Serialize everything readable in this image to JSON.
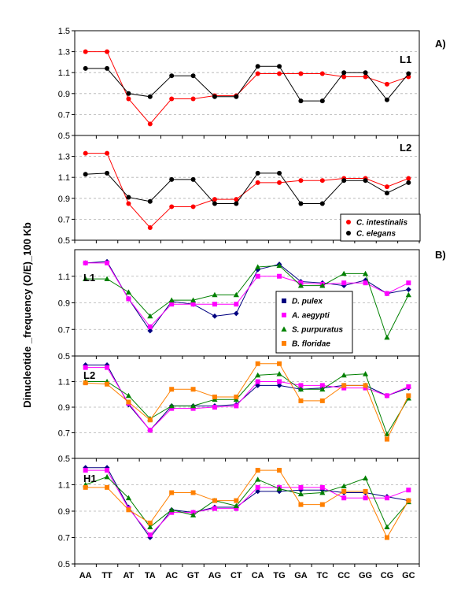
{
  "ylabel": "Dinucleotide _frequency (O/E)_100 Kb",
  "section_labels": [
    "A)",
    "B)"
  ],
  "colors": {
    "C. intestinalis": "#ff0000",
    "C. elegans": "#000000",
    "D. pulex": "#000080",
    "A. aegypti": "#ff00ff",
    "S. purpuratus": "#008000",
    "B. floridae": "#ff8000"
  },
  "chart_data": [
    {
      "type": "line",
      "panel_label": "L1",
      "categories": [
        "AA",
        "TT",
        "AT",
        "TA",
        "AC",
        "GT",
        "AG",
        "CT",
        "CA",
        "TG",
        "GA",
        "TC",
        "CC",
        "GG",
        "CG",
        "GC"
      ],
      "ylim": [
        0.5,
        1.5
      ],
      "yticks": [
        "0.5",
        "0.7",
        "0.9",
        "1.1",
        "1.3",
        "1.5"
      ],
      "show_xticks": false,
      "series": [
        {
          "name": "C. intestinalis",
          "marker": "circle",
          "values": [
            1.3,
            1.3,
            0.85,
            0.61,
            0.85,
            0.85,
            0.88,
            0.88,
            1.09,
            1.09,
            1.09,
            1.09,
            1.06,
            1.06,
            0.99,
            1.06
          ]
        },
        {
          "name": "C. elegans",
          "marker": "circle",
          "values": [
            1.14,
            1.14,
            0.9,
            0.87,
            1.07,
            1.07,
            0.87,
            0.87,
            1.16,
            1.16,
            0.83,
            0.83,
            1.1,
            1.1,
            0.84,
            1.09
          ]
        }
      ]
    },
    {
      "type": "line",
      "panel_label": "L2",
      "categories": [
        "AA",
        "TT",
        "AT",
        "TA",
        "AC",
        "GT",
        "AG",
        "CT",
        "CA",
        "TG",
        "GA",
        "TC",
        "CC",
        "GG",
        "CG",
        "GC"
      ],
      "ylim": [
        0.5,
        1.5
      ],
      "yticks": [
        "0.5",
        "0.7",
        "0.9",
        "1.1",
        "1.3"
      ],
      "show_xticks": false,
      "legend": {
        "entries": [
          "C. intestinalis",
          "C. elegans"
        ],
        "placement": "bottom-right"
      },
      "series": [
        {
          "name": "C. intestinalis",
          "marker": "circle",
          "values": [
            1.33,
            1.33,
            0.85,
            0.62,
            0.82,
            0.82,
            0.89,
            0.89,
            1.05,
            1.05,
            1.07,
            1.07,
            1.09,
            1.09,
            1.01,
            1.09
          ]
        },
        {
          "name": "C. elegans",
          "marker": "circle",
          "values": [
            1.13,
            1.14,
            0.91,
            0.87,
            1.08,
            1.08,
            0.85,
            0.85,
            1.14,
            1.14,
            0.85,
            0.85,
            1.07,
            1.07,
            0.95,
            1.05
          ]
        }
      ]
    },
    {
      "type": "line",
      "panel_label": "L1",
      "categories": [
        "AA",
        "TT",
        "AT",
        "TA",
        "AC",
        "GT",
        "AG",
        "CT",
        "CA",
        "TG",
        "GA",
        "TC",
        "CC",
        "GG",
        "CG",
        "GC"
      ],
      "ylim": [
        0.5,
        1.3
      ],
      "yticks": [
        "0.5",
        "0.7",
        "0.9",
        "1.1"
      ],
      "show_xticks": false,
      "legend": {
        "entries": [
          "D. pulex",
          "A. aegypti",
          "S. purpuratus",
          "B. floridae"
        ],
        "placement": "bottom-center"
      },
      "series": [
        {
          "name": "D. pulex",
          "marker": "diamond",
          "values": [
            1.2,
            1.21,
            0.93,
            0.69,
            0.91,
            0.89,
            0.8,
            0.82,
            1.15,
            1.19,
            1.06,
            1.05,
            1.03,
            1.07,
            0.97,
            1.0
          ]
        },
        {
          "name": "A. aegypti",
          "marker": "square",
          "values": [
            1.2,
            1.2,
            0.93,
            0.72,
            0.89,
            0.89,
            0.89,
            0.89,
            1.1,
            1.1,
            1.05,
            1.04,
            1.05,
            1.05,
            0.97,
            1.05
          ]
        },
        {
          "name": "S. purpuratus",
          "marker": "triangle",
          "values": [
            1.08,
            1.08,
            0.98,
            0.8,
            0.92,
            0.92,
            0.96,
            0.96,
            1.17,
            1.18,
            1.03,
            1.03,
            1.12,
            1.12,
            0.64,
            0.96
          ]
        }
      ]
    },
    {
      "type": "line",
      "panel_label": "L2",
      "categories": [
        "AA",
        "TT",
        "AT",
        "TA",
        "AC",
        "GT",
        "AG",
        "CT",
        "CA",
        "TG",
        "GA",
        "TC",
        "CC",
        "GG",
        "CG",
        "GC"
      ],
      "ylim": [
        0.5,
        1.3
      ],
      "yticks": [
        "0.5",
        "0.7",
        "0.9",
        "1.1"
      ],
      "show_xticks": false,
      "series": [
        {
          "name": "D. pulex",
          "marker": "diamond",
          "values": [
            1.23,
            1.23,
            0.92,
            0.72,
            0.91,
            0.91,
            0.91,
            0.92,
            1.07,
            1.07,
            1.04,
            1.05,
            1.07,
            1.07,
            0.99,
            1.05
          ]
        },
        {
          "name": "A. aegypti",
          "marker": "square",
          "values": [
            1.21,
            1.21,
            0.93,
            0.72,
            0.89,
            0.89,
            0.9,
            0.91,
            1.1,
            1.1,
            1.07,
            1.07,
            1.05,
            1.05,
            0.99,
            1.06
          ]
        },
        {
          "name": "S. purpuratus",
          "marker": "triangle",
          "values": [
            1.1,
            1.1,
            0.99,
            0.81,
            0.91,
            0.91,
            0.96,
            0.96,
            1.15,
            1.16,
            1.04,
            1.04,
            1.15,
            1.16,
            0.69,
            0.97
          ]
        },
        {
          "name": "B. floridae",
          "marker": "square",
          "values": [
            1.09,
            1.08,
            0.94,
            0.8,
            1.04,
            1.04,
            0.98,
            0.98,
            1.24,
            1.24,
            0.95,
            0.95,
            1.07,
            1.07,
            0.65,
            0.99
          ]
        }
      ]
    },
    {
      "type": "line",
      "panel_label": "H1",
      "categories": [
        "AA",
        "TT",
        "AT",
        "TA",
        "AC",
        "GT",
        "AG",
        "CT",
        "CA",
        "TG",
        "GA",
        "TC",
        "CC",
        "GG",
        "CG",
        "GC"
      ],
      "ylim": [
        0.5,
        1.3
      ],
      "yticks": [
        "0.5",
        "0.7",
        "0.9",
        "1.1"
      ],
      "show_xticks": true,
      "series": [
        {
          "name": "D. pulex",
          "marker": "diamond",
          "values": [
            1.23,
            1.23,
            0.93,
            0.7,
            0.91,
            0.89,
            0.93,
            0.93,
            1.05,
            1.05,
            1.06,
            1.06,
            1.04,
            1.04,
            1.01,
            0.98
          ]
        },
        {
          "name": "A. aegypti",
          "marker": "square",
          "values": [
            1.21,
            1.21,
            0.92,
            0.72,
            0.89,
            0.89,
            0.92,
            0.92,
            1.08,
            1.08,
            1.08,
            1.08,
            1.0,
            1.0,
            1.0,
            1.06
          ]
        },
        {
          "name": "S. purpuratus",
          "marker": "triangle",
          "values": [
            1.1,
            1.16,
            1.0,
            0.78,
            0.91,
            0.87,
            0.98,
            0.94,
            1.14,
            1.07,
            1.03,
            1.04,
            1.09,
            1.15,
            0.78,
            0.97
          ]
        },
        {
          "name": "B. floridae",
          "marker": "square",
          "values": [
            1.08,
            1.08,
            0.91,
            0.81,
            1.04,
            1.04,
            0.98,
            0.98,
            1.21,
            1.21,
            0.95,
            0.95,
            1.05,
            1.05,
            0.7,
            0.98
          ]
        }
      ]
    }
  ]
}
